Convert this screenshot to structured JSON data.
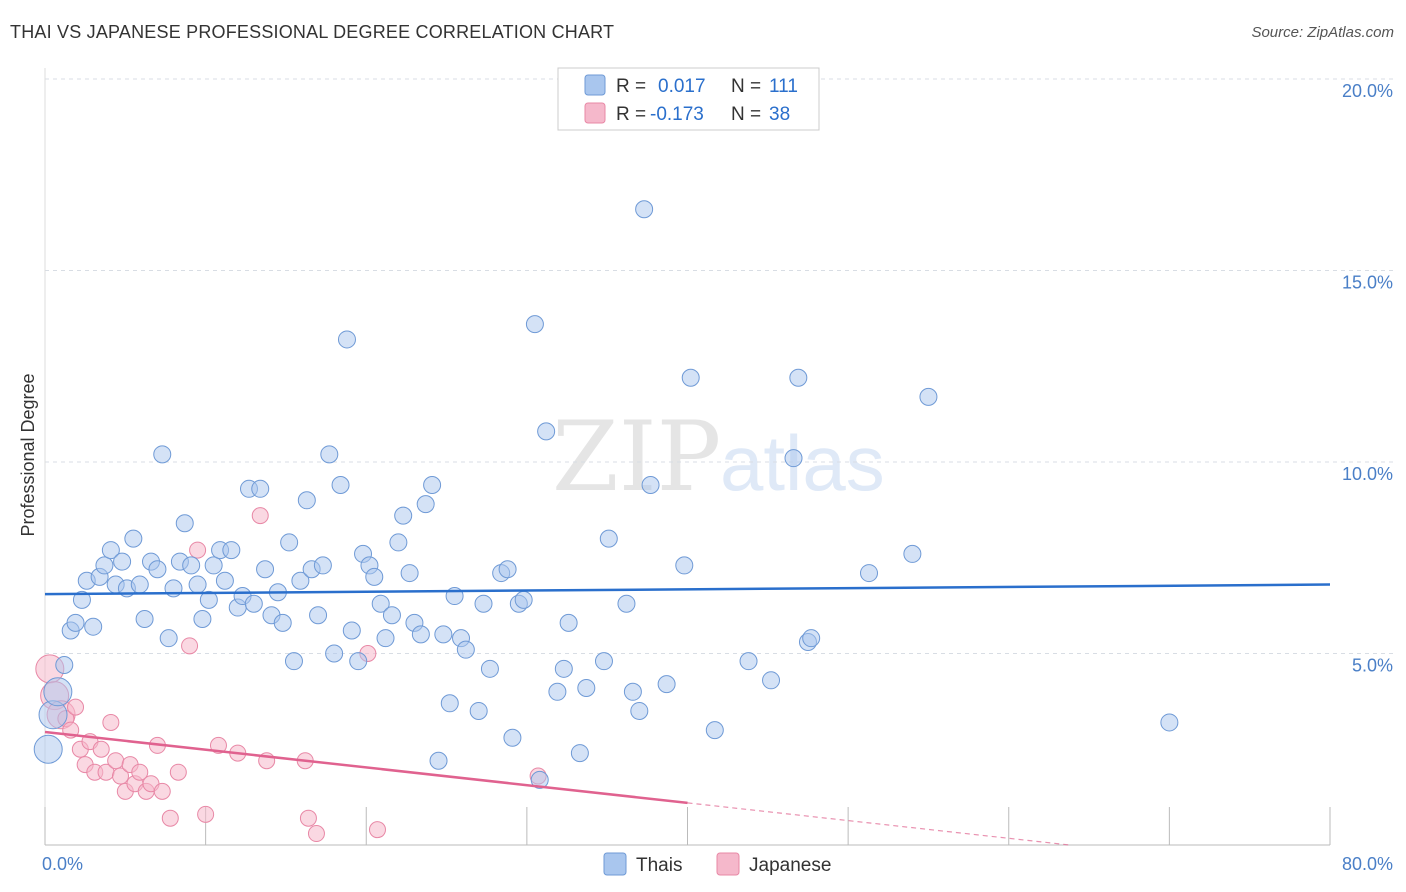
{
  "title": "THAI VS JAPANESE PROFESSIONAL DEGREE CORRELATION CHART",
  "source": "Source: ZipAtlas.com",
  "watermark": {
    "part1": "ZIP",
    "part2": "atlas"
  },
  "legend_top": [
    {
      "r_label": "R =",
      "r_value": "0.017",
      "n_label": "N =",
      "n_value": "111"
    },
    {
      "r_label": "R =",
      "r_value": "-0.173",
      "n_label": "N =",
      "n_value": "38"
    }
  ],
  "colors": {
    "thai_fill": "#a9c6ee",
    "thai_stroke": "#6f9ad6",
    "thai_line": "#2a6fcc",
    "japanese_fill": "#f5b8cb",
    "japanese_stroke": "#e888a6",
    "japanese_line": "#e0628f",
    "grid": "#d8dde4",
    "axis_text": "#4a7fc7"
  },
  "chart_data": {
    "type": "scatter",
    "title": "THAI VS JAPANESE PROFESSIONAL DEGREE CORRELATION CHART",
    "xlabel": "",
    "ylabel": "Professional Degree",
    "xlim": [
      0,
      80
    ],
    "ylim": [
      0,
      20
    ],
    "x_tick_labels": [
      "0.0%",
      "80.0%"
    ],
    "y_ticks": [
      5,
      10,
      15,
      20
    ],
    "y_tick_labels": [
      "5.0%",
      "10.0%",
      "15.0%",
      "20.0%"
    ],
    "grid": true,
    "legend_position": "top-center",
    "series": [
      {
        "name": "Thais",
        "r": 0.017,
        "n": 111,
        "trend": {
          "x": [
            0,
            80
          ],
          "y": [
            6.55,
            6.8
          ]
        },
        "points": [
          [
            0.2,
            2.5
          ],
          [
            0.5,
            3.4
          ],
          [
            0.8,
            4.0
          ],
          [
            1.2,
            4.7
          ],
          [
            1.6,
            5.6
          ],
          [
            1.9,
            5.8
          ],
          [
            2.3,
            6.4
          ],
          [
            2.6,
            6.9
          ],
          [
            3.0,
            5.7
          ],
          [
            3.4,
            7.0
          ],
          [
            3.7,
            7.3
          ],
          [
            4.1,
            7.7
          ],
          [
            4.4,
            6.8
          ],
          [
            4.8,
            7.4
          ],
          [
            5.1,
            6.7
          ],
          [
            5.5,
            8.0
          ],
          [
            5.9,
            6.8
          ],
          [
            6.2,
            5.9
          ],
          [
            6.6,
            7.4
          ],
          [
            7.0,
            7.2
          ],
          [
            7.3,
            10.2
          ],
          [
            7.7,
            5.4
          ],
          [
            8.0,
            6.7
          ],
          [
            8.4,
            7.4
          ],
          [
            8.7,
            8.4
          ],
          [
            9.1,
            7.3
          ],
          [
            9.5,
            6.8
          ],
          [
            9.8,
            5.9
          ],
          [
            10.2,
            6.4
          ],
          [
            10.5,
            7.3
          ],
          [
            10.9,
            7.7
          ],
          [
            11.2,
            6.9
          ],
          [
            11.6,
            7.7
          ],
          [
            12.0,
            6.2
          ],
          [
            12.3,
            6.5
          ],
          [
            12.7,
            9.3
          ],
          [
            13.0,
            6.3
          ],
          [
            13.4,
            9.3
          ],
          [
            13.7,
            7.2
          ],
          [
            14.1,
            6.0
          ],
          [
            14.5,
            6.6
          ],
          [
            14.8,
            5.8
          ],
          [
            15.2,
            7.9
          ],
          [
            15.5,
            4.8
          ],
          [
            15.9,
            6.9
          ],
          [
            16.3,
            9.0
          ],
          [
            16.6,
            7.2
          ],
          [
            17.0,
            6.0
          ],
          [
            17.3,
            7.3
          ],
          [
            17.7,
            10.2
          ],
          [
            18.0,
            5.0
          ],
          [
            18.4,
            9.4
          ],
          [
            18.8,
            13.2
          ],
          [
            19.1,
            5.6
          ],
          [
            19.5,
            4.8
          ],
          [
            19.8,
            7.6
          ],
          [
            20.2,
            7.3
          ],
          [
            20.5,
            7.0
          ],
          [
            20.9,
            6.3
          ],
          [
            21.2,
            5.4
          ],
          [
            21.6,
            6.0
          ],
          [
            22.0,
            7.9
          ],
          [
            22.3,
            8.6
          ],
          [
            22.7,
            7.1
          ],
          [
            23.0,
            5.8
          ],
          [
            23.4,
            5.5
          ],
          [
            23.7,
            8.9
          ],
          [
            24.1,
            9.4
          ],
          [
            24.5,
            2.2
          ],
          [
            24.8,
            5.5
          ],
          [
            25.2,
            3.7
          ],
          [
            25.5,
            6.5
          ],
          [
            25.9,
            5.4
          ],
          [
            26.2,
            5.1
          ],
          [
            27.0,
            3.5
          ],
          [
            27.3,
            6.3
          ],
          [
            27.7,
            4.6
          ],
          [
            28.4,
            7.1
          ],
          [
            28.8,
            7.2
          ],
          [
            29.1,
            2.8
          ],
          [
            29.5,
            6.3
          ],
          [
            29.8,
            6.4
          ],
          [
            30.5,
            13.6
          ],
          [
            30.8,
            1.7
          ],
          [
            31.2,
            10.8
          ],
          [
            31.9,
            4.0
          ],
          [
            32.3,
            4.6
          ],
          [
            32.6,
            5.8
          ],
          [
            33.3,
            2.4
          ],
          [
            33.7,
            4.1
          ],
          [
            34.8,
            4.8
          ],
          [
            35.1,
            8.0
          ],
          [
            36.2,
            6.3
          ],
          [
            36.6,
            4.0
          ],
          [
            37.0,
            3.5
          ],
          [
            37.3,
            16.6
          ],
          [
            37.7,
            9.4
          ],
          [
            38.7,
            4.2
          ],
          [
            39.8,
            7.3
          ],
          [
            40.2,
            12.2
          ],
          [
            41.7,
            3.0
          ],
          [
            43.8,
            4.8
          ],
          [
            45.2,
            4.3
          ],
          [
            46.6,
            10.1
          ],
          [
            46.9,
            12.2
          ],
          [
            47.5,
            5.3
          ],
          [
            47.7,
            5.4
          ],
          [
            51.3,
            7.1
          ],
          [
            54.0,
            7.6
          ],
          [
            55.0,
            11.7
          ],
          [
            70.0,
            3.2
          ]
        ]
      },
      {
        "name": "Japanese",
        "r": -0.173,
        "n": 38,
        "trend": {
          "x": [
            0,
            40
          ],
          "y": [
            2.95,
            1.1
          ]
        },
        "trend_dashed": {
          "x": [
            40,
            80
          ],
          "y": [
            1.1,
            -0.75
          ]
        },
        "points": [
          [
            0.3,
            4.6
          ],
          [
            0.6,
            3.9
          ],
          [
            1.0,
            3.4
          ],
          [
            1.3,
            3.3
          ],
          [
            1.6,
            3.0
          ],
          [
            1.9,
            3.6
          ],
          [
            2.2,
            2.5
          ],
          [
            2.5,
            2.1
          ],
          [
            2.8,
            2.7
          ],
          [
            3.1,
            1.9
          ],
          [
            3.5,
            2.5
          ],
          [
            3.8,
            1.9
          ],
          [
            4.1,
            3.2
          ],
          [
            4.4,
            2.2
          ],
          [
            4.7,
            1.8
          ],
          [
            5.0,
            1.4
          ],
          [
            5.3,
            2.1
          ],
          [
            5.6,
            1.6
          ],
          [
            5.9,
            1.9
          ],
          [
            6.3,
            1.4
          ],
          [
            6.6,
            1.6
          ],
          [
            7.0,
            2.6
          ],
          [
            7.3,
            1.4
          ],
          [
            7.8,
            0.7
          ],
          [
            8.3,
            1.9
          ],
          [
            9.0,
            5.2
          ],
          [
            9.5,
            7.7
          ],
          [
            10.0,
            0.8
          ],
          [
            10.8,
            2.6
          ],
          [
            12.0,
            2.4
          ],
          [
            13.4,
            8.6
          ],
          [
            13.8,
            2.2
          ],
          [
            16.2,
            2.2
          ],
          [
            16.4,
            0.7
          ],
          [
            16.9,
            0.3
          ],
          [
            20.1,
            5.0
          ],
          [
            20.7,
            0.4
          ],
          [
            30.7,
            1.8
          ]
        ]
      }
    ]
  },
  "bottom_legend": [
    "Thais",
    "Japanese"
  ]
}
